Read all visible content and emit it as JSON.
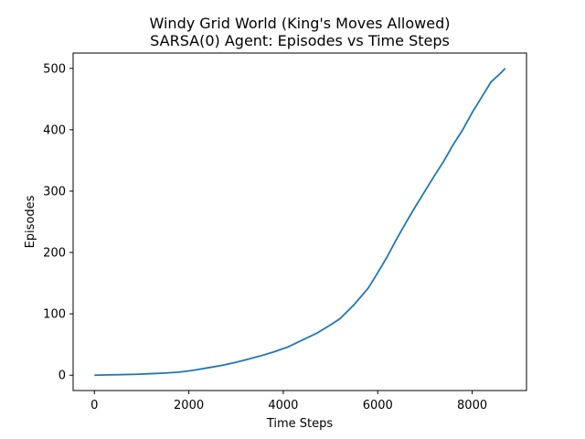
{
  "chart_data": {
    "type": "line",
    "title_line1": "Windy Grid World (King's Moves Allowed)",
    "title_line2": "SARSA(0) Agent: Episodes vs Time Steps",
    "xlabel": "Time Steps",
    "ylabel": "Episodes",
    "xlim": [
      -450,
      9150
    ],
    "ylim": [
      -25,
      525
    ],
    "xticks": [
      0,
      2000,
      4000,
      6000,
      8000
    ],
    "yticks": [
      0,
      100,
      200,
      300,
      400,
      500
    ],
    "grid": false,
    "line_color": "#1f77b4",
    "series": [
      {
        "x": [
          0,
          300,
          600,
          900,
          1200,
          1500,
          1800,
          2100,
          2400,
          2700,
          3000,
          3200,
          3500,
          3800,
          4100,
          4400,
          4700,
          5000,
          5200,
          5500,
          5800,
          6000,
          6200,
          6400,
          6600,
          6800,
          7000,
          7200,
          7400,
          7600,
          7800,
          8000,
          8200,
          8400,
          8600,
          8700
        ],
        "y": [
          0,
          0.5,
          1,
          1.5,
          2.5,
          3.5,
          5,
          8,
          12,
          16,
          21,
          25,
          31,
          38,
          46,
          57,
          68,
          82,
          92,
          115,
          142,
          167,
          193,
          222,
          249,
          275,
          300,
          325,
          349,
          376,
          400,
          428,
          453,
          478,
          492,
          500
        ]
      }
    ]
  }
}
